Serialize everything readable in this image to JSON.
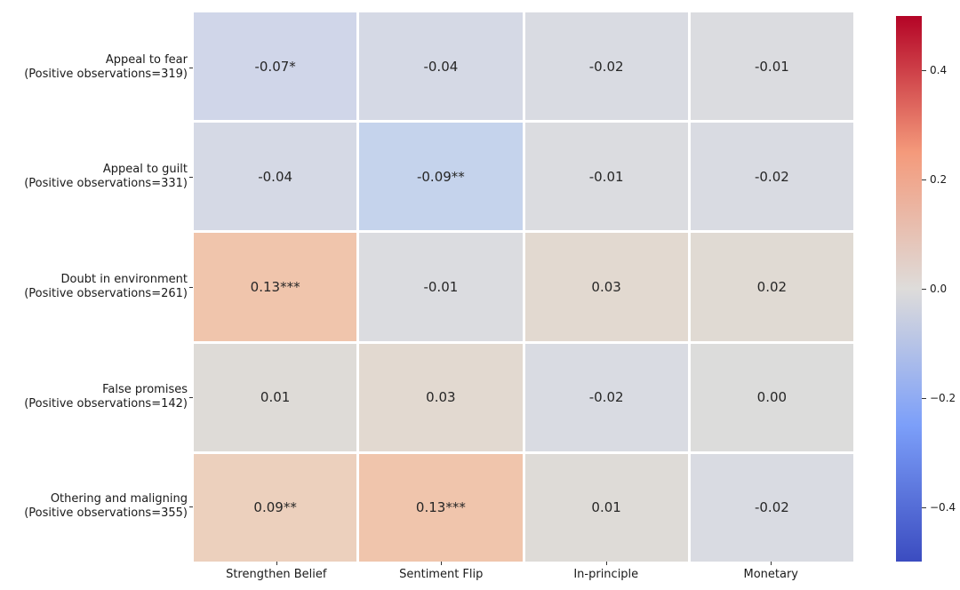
{
  "figure": {
    "background": "#ffffff",
    "annotation_color": "#262626",
    "tick_label_color": "#1a1a1a",
    "gridline_color": "#ffffff"
  },
  "chart_data": {
    "type": "heatmap",
    "title": "",
    "xlabel": "",
    "ylabel": "",
    "x_tick_labels": [
      "Strengthen Belief",
      "Sentiment Flip",
      "In-principle",
      "Monetary"
    ],
    "rows": [
      {
        "label": [
          "Appeal to fear",
          "(Positive observations=319)"
        ],
        "cells": [
          {
            "text": "-0.07*",
            "value": -0.07,
            "color": "#d0d6e9"
          },
          {
            "text": "-0.04",
            "value": -0.04,
            "color": "#d5d9e5"
          },
          {
            "text": "-0.02",
            "value": -0.02,
            "color": "#d9dbe2"
          },
          {
            "text": "-0.01",
            "value": -0.01,
            "color": "#dbdce0"
          }
        ]
      },
      {
        "label": [
          "Appeal to guilt",
          "(Positive observations=331)"
        ],
        "cells": [
          {
            "text": "-0.04",
            "value": -0.04,
            "color": "#d5d9e5"
          },
          {
            "text": "-0.09**",
            "value": -0.09,
            "color": "#c5d3ec"
          },
          {
            "text": "-0.01",
            "value": -0.01,
            "color": "#dbdce0"
          },
          {
            "text": "-0.02",
            "value": -0.02,
            "color": "#d9dbe2"
          }
        ]
      },
      {
        "label": [
          "Doubt in environment",
          "(Positive observations=261)"
        ],
        "cells": [
          {
            "text": "0.13***",
            "value": 0.13,
            "color": "#f0c5ac"
          },
          {
            "text": "-0.01",
            "value": -0.01,
            "color": "#dbdce0"
          },
          {
            "text": "0.03",
            "value": 0.03,
            "color": "#e2d9d0"
          },
          {
            "text": "0.02",
            "value": 0.02,
            "color": "#e0dad3"
          }
        ]
      },
      {
        "label": [
          "False promises",
          "(Positive observations=142)"
        ],
        "cells": [
          {
            "text": "0.01",
            "value": 0.01,
            "color": "#dedbd7"
          },
          {
            "text": "0.03",
            "value": 0.03,
            "color": "#e2d9d0"
          },
          {
            "text": "-0.02",
            "value": -0.02,
            "color": "#d9dbe2"
          },
          {
            "text": "0.00",
            "value": 0.0,
            "color": "#dcdcdb"
          }
        ]
      },
      {
        "label": [
          "Othering and maligning",
          "(Positive observations=355)"
        ],
        "cells": [
          {
            "text": "0.09**",
            "value": 0.09,
            "color": "#ecd0bd"
          },
          {
            "text": "0.13***",
            "value": 0.13,
            "color": "#f0c5ac"
          },
          {
            "text": "0.01",
            "value": 0.01,
            "color": "#dedbd7"
          },
          {
            "text": "-0.02",
            "value": -0.02,
            "color": "#d9dbe2"
          }
        ]
      }
    ],
    "colorbar": {
      "vmin": -0.5,
      "vmax": 0.5,
      "tick_labels": [
        "0.4",
        "0.2",
        "0.0",
        "−0.2",
        "−0.4"
      ],
      "gradient_top_to_bottom": [
        "#b40426",
        "#f49a7b",
        "#dedcda",
        "#7c9ff9",
        "#3b4cc0"
      ]
    }
  }
}
